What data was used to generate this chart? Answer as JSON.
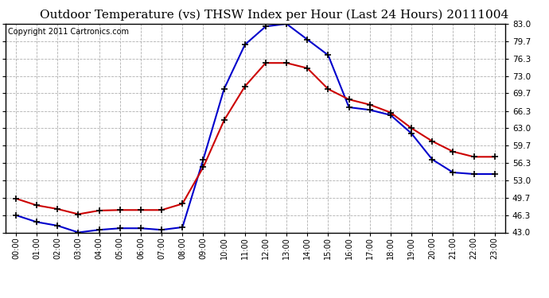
{
  "title": "Outdoor Temperature (vs) THSW Index per Hour (Last 24 Hours) 20111004",
  "copyright": "Copyright 2011 Cartronics.com",
  "hours": [
    "00:00",
    "01:00",
    "02:00",
    "03:00",
    "04:00",
    "05:00",
    "06:00",
    "07:00",
    "08:00",
    "09:00",
    "10:00",
    "11:00",
    "12:00",
    "13:00",
    "14:00",
    "15:00",
    "16:00",
    "17:00",
    "18:00",
    "19:00",
    "20:00",
    "21:00",
    "22:00",
    "23:00"
  ],
  "temp_red": [
    49.5,
    48.2,
    47.5,
    46.5,
    47.2,
    47.3,
    47.3,
    47.3,
    48.5,
    55.5,
    64.5,
    71.0,
    75.5,
    75.5,
    74.5,
    70.5,
    68.5,
    67.5,
    66.0,
    63.0,
    60.5,
    58.5,
    57.5,
    57.5
  ],
  "thsw_blue": [
    46.3,
    45.0,
    44.3,
    43.0,
    43.5,
    43.8,
    43.8,
    43.5,
    44.0,
    57.0,
    70.5,
    79.0,
    82.5,
    83.0,
    80.0,
    77.0,
    67.0,
    66.5,
    65.5,
    62.0,
    57.0,
    54.5,
    54.2,
    54.2
  ],
  "red_color": "#cc0000",
  "blue_color": "#0000cc",
  "bg_color": "#ffffff",
  "grid_color": "#b0b0b0",
  "yticks": [
    43.0,
    46.3,
    49.7,
    53.0,
    56.3,
    59.7,
    63.0,
    66.3,
    69.7,
    73.0,
    76.3,
    79.7,
    83.0
  ],
  "ylim": [
    43.0,
    83.0
  ],
  "title_fontsize": 11,
  "copyright_fontsize": 7
}
